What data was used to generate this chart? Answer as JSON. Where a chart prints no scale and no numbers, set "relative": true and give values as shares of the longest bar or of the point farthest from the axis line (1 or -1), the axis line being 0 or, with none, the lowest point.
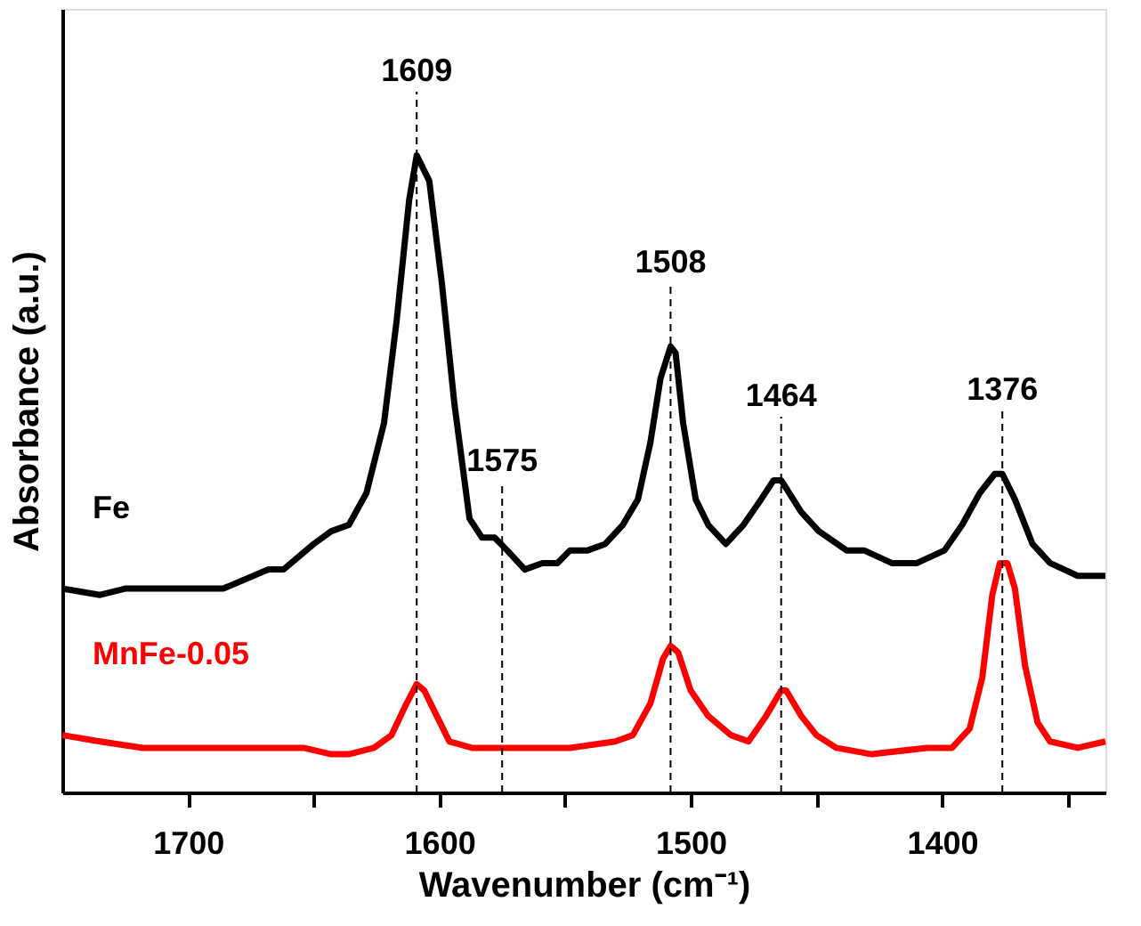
{
  "chart_data": {
    "type": "line",
    "relative": true,
    "xlabel": "Wavenumber (cm⁻¹)",
    "ylabel": "Absorbance (a.u.)",
    "xlim": [
      1750,
      1335
    ],
    "xticks": [
      1700,
      {
        "value": 1650,
        "label": null
      },
      1600,
      {
        "value": 1550,
        "label": null
      },
      1500,
      {
        "value": 1450,
        "label": null
      },
      1400,
      {
        "value": 1350,
        "label": null
      }
    ],
    "grid": false,
    "line_style": "solid",
    "marker": "none",
    "series": [
      {
        "name": "Fe",
        "color": "#000000",
        "x": [
          1750,
          1735,
          1725,
          1718,
          1696,
          1686,
          1668,
          1662,
          1650,
          1643,
          1636,
          1629,
          1622,
          1617,
          1612,
          1609,
          1604,
          1599,
          1594,
          1588,
          1583,
          1578,
          1573,
          1566,
          1559,
          1553,
          1548,
          1541,
          1534,
          1527,
          1521,
          1516,
          1512,
          1508,
          1506,
          1503,
          1498,
          1493,
          1486,
          1479,
          1472,
          1467,
          1464,
          1456,
          1449,
          1438,
          1431,
          1420,
          1410,
          1399,
          1392,
          1385,
          1379,
          1376,
          1371,
          1364,
          1357,
          1346,
          1335
        ],
        "values": [
          0.32,
          0.31,
          0.32,
          0.32,
          0.32,
          0.32,
          0.35,
          0.35,
          0.39,
          0.41,
          0.42,
          0.47,
          0.58,
          0.74,
          0.93,
          1.0,
          0.96,
          0.8,
          0.61,
          0.43,
          0.4,
          0.4,
          0.38,
          0.35,
          0.36,
          0.36,
          0.38,
          0.38,
          0.39,
          0.42,
          0.46,
          0.55,
          0.65,
          0.7,
          0.69,
          0.58,
          0.46,
          0.42,
          0.39,
          0.42,
          0.46,
          0.49,
          0.49,
          0.44,
          0.41,
          0.38,
          0.38,
          0.36,
          0.36,
          0.38,
          0.42,
          0.47,
          0.5,
          0.5,
          0.46,
          0.39,
          0.36,
          0.34,
          0.34
        ]
      },
      {
        "name": "MnFe-0.05",
        "color": "#ff0000",
        "x": [
          1750,
          1735,
          1718,
          1682,
          1654,
          1643,
          1636,
          1626,
          1619,
          1613,
          1609,
          1606,
          1601,
          1596,
          1587,
          1562,
          1548,
          1530,
          1523,
          1516,
          1511,
          1508,
          1505,
          1500,
          1493,
          1484,
          1477,
          1470,
          1464,
          1462,
          1456,
          1450,
          1442,
          1428,
          1406,
          1396,
          1389,
          1384,
          1380,
          1377,
          1374,
          1371,
          1367,
          1362,
          1357,
          1346,
          1335
        ],
        "values": [
          0.09,
          0.08,
          0.07,
          0.07,
          0.07,
          0.06,
          0.06,
          0.07,
          0.09,
          0.14,
          0.17,
          0.16,
          0.12,
          0.08,
          0.07,
          0.07,
          0.07,
          0.08,
          0.09,
          0.14,
          0.21,
          0.23,
          0.22,
          0.16,
          0.12,
          0.09,
          0.08,
          0.12,
          0.16,
          0.16,
          0.12,
          0.09,
          0.07,
          0.06,
          0.07,
          0.07,
          0.1,
          0.18,
          0.31,
          0.36,
          0.36,
          0.32,
          0.2,
          0.11,
          0.08,
          0.07,
          0.08
        ]
      }
    ],
    "ref_lines": [
      {
        "axis": "x",
        "value": 1609,
        "label": "1609",
        "color": "#000000",
        "line_style": "dashed"
      },
      {
        "axis": "x",
        "value": 1575,
        "label": "1575",
        "color": "#000000",
        "line_style": "dashed"
      },
      {
        "axis": "x",
        "value": 1508,
        "label": "1508",
        "color": "#000000",
        "line_style": "dashed"
      },
      {
        "axis": "x",
        "value": 1464,
        "label": "1464",
        "color": "#000000",
        "line_style": "dashed"
      },
      {
        "axis": "x",
        "value": 1376,
        "label": "1376",
        "color": "#000000",
        "line_style": "dashed"
      }
    ]
  }
}
